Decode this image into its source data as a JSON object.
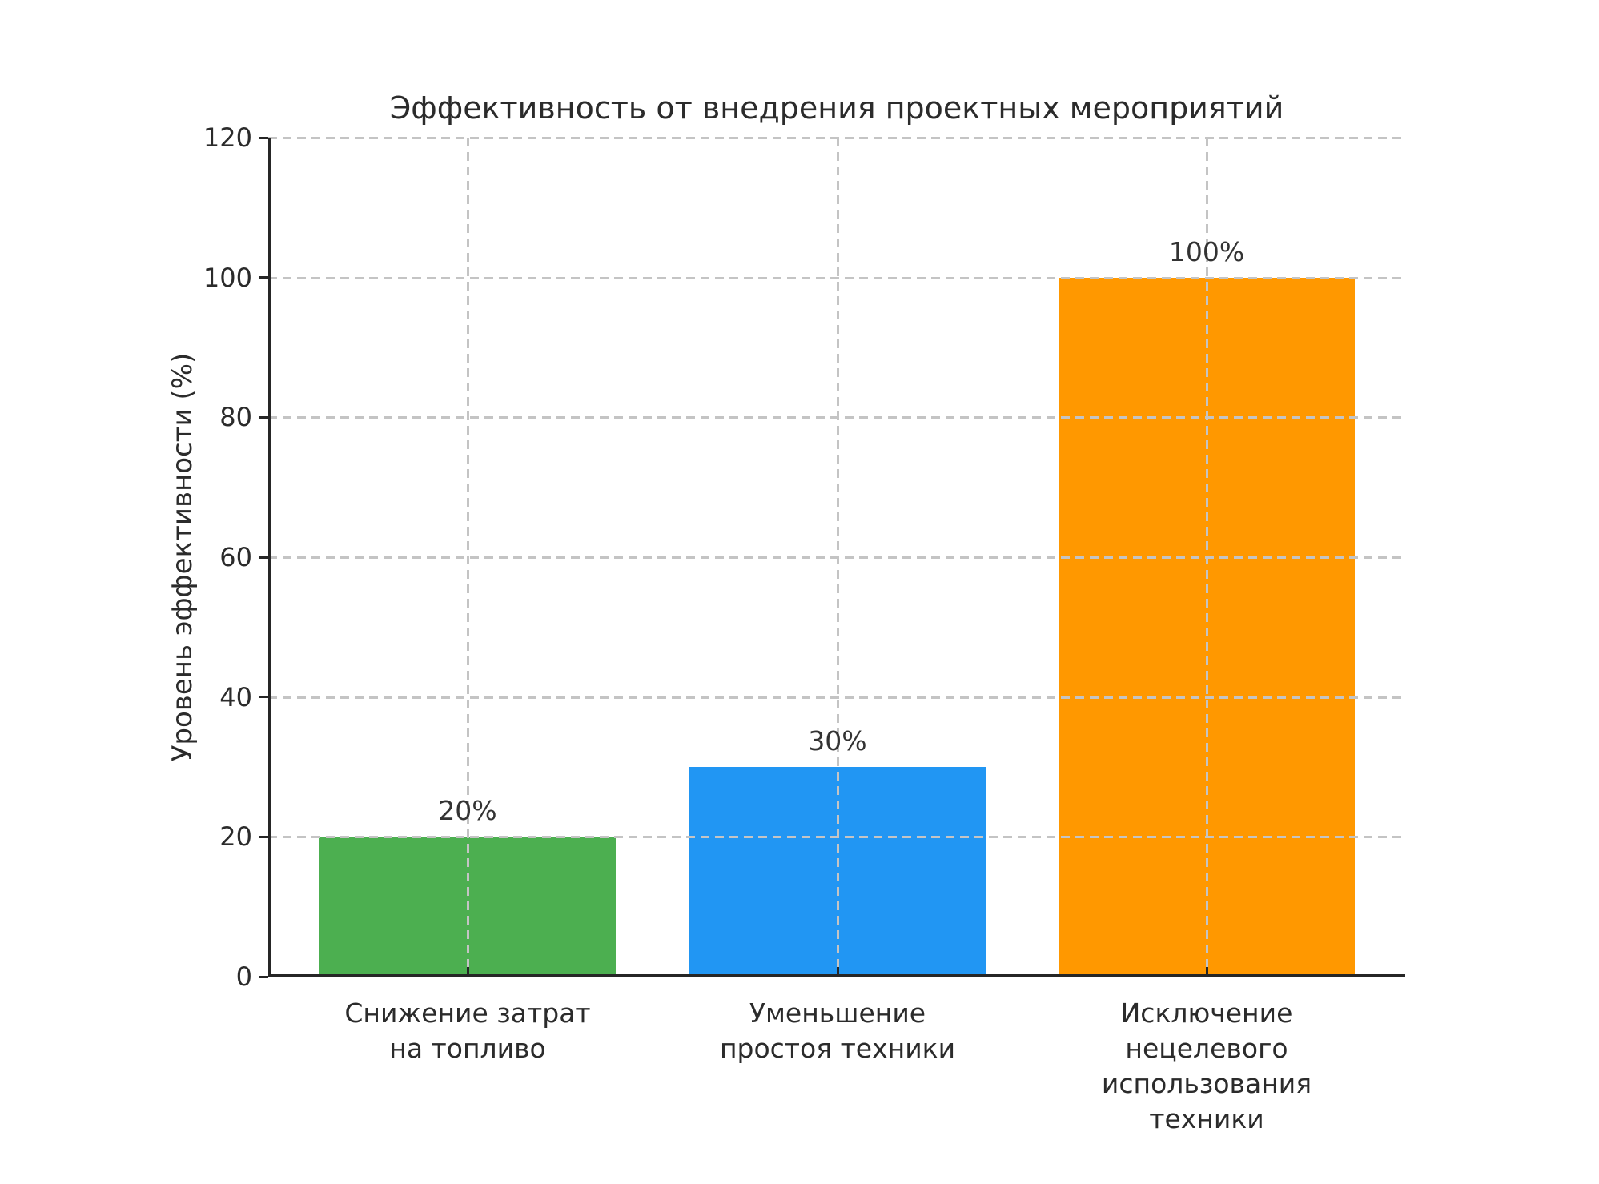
{
  "chart_data": {
    "type": "bar",
    "title": "Эффективность от внедрения проектных мероприятий",
    "ylabel": "Уровень эффективности (%)",
    "xlabel": "",
    "categories": [
      [
        "Снижение затрат",
        "на топливо"
      ],
      [
        "Уменьшение",
        "простоя техники"
      ],
      [
        "Исключение",
        "нецелевого",
        "использования",
        "техники"
      ]
    ],
    "values": [
      20,
      30,
      100
    ],
    "value_labels": [
      "20%",
      "30%",
      "100%"
    ],
    "bar_colors": [
      "#4caf50",
      "#2196f3",
      "#ff9800"
    ],
    "ylim": [
      0,
      120
    ],
    "yticks": [
      0,
      20,
      40,
      60,
      80,
      100,
      120
    ],
    "grid": {
      "style": "dashed",
      "color": "#c4c4c4",
      "axes": "both",
      "drawn_above_bars": true
    },
    "legend": "none",
    "text_color": "#2b2b2b",
    "spine_color": "#262626",
    "background": "#ffffff"
  }
}
